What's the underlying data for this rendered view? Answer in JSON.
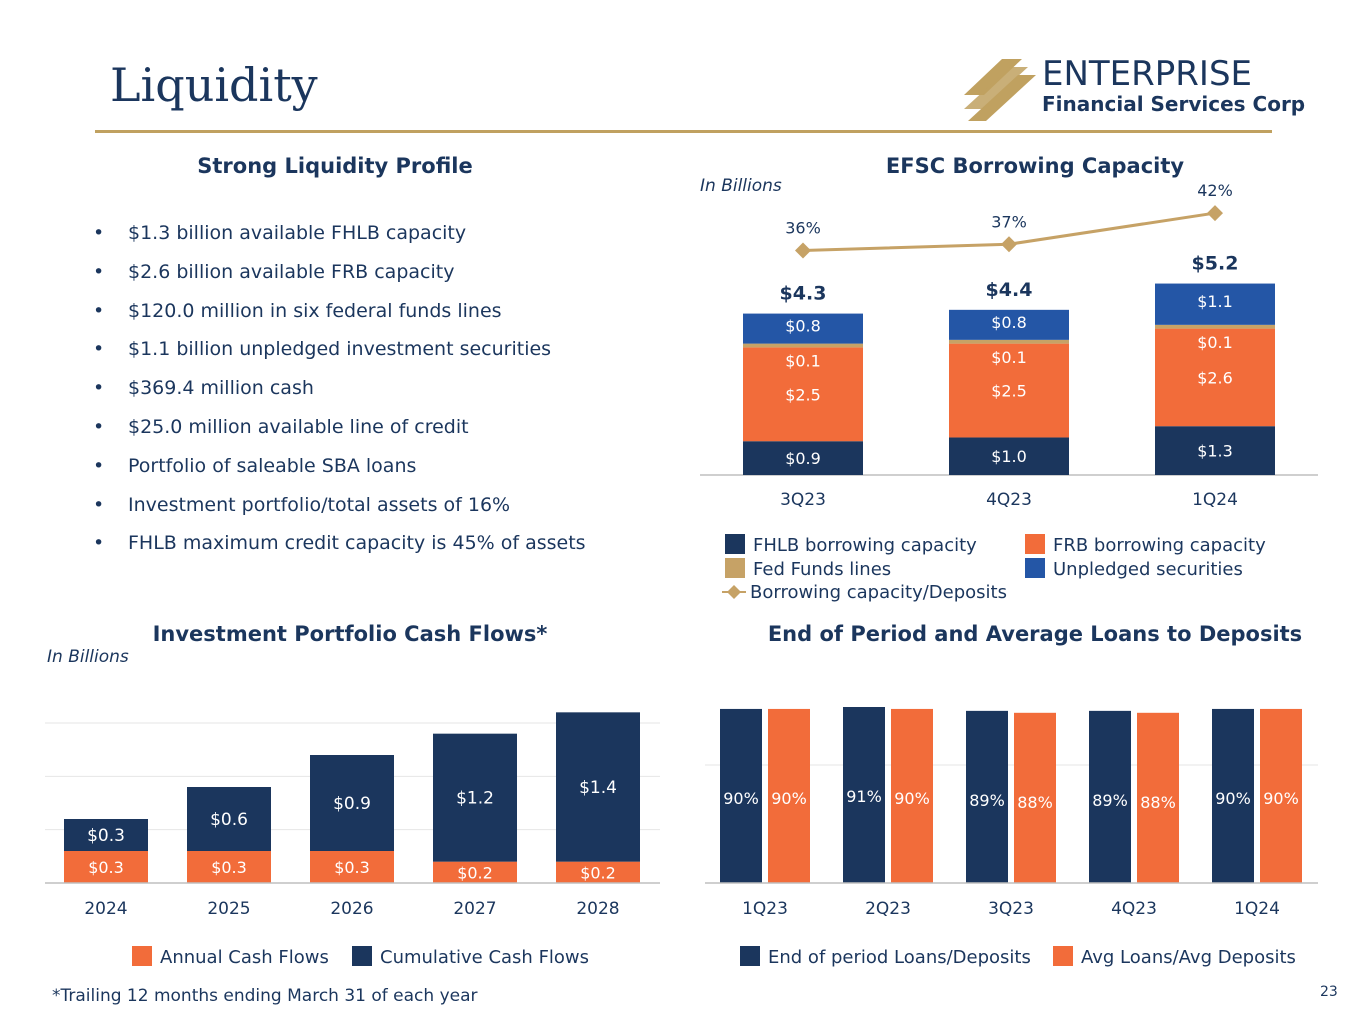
{
  "page": {
    "title": "Liquidity",
    "page_number": "23",
    "footnote": "*Trailing 12 months ending March 31 of each year"
  },
  "logo": {
    "name": "ENTERPRISE",
    "subtitle": "Financial Services Corp"
  },
  "colors": {
    "navy": "#1b365d",
    "orange": "#f26c3a",
    "gold": "#c0a160",
    "blue": "#2456a6",
    "tan": "#c6a266"
  },
  "liquidity_profile": {
    "title": "Strong Liquidity Profile",
    "bullet_symbol": "•",
    "items": [
      "$1.3 billion available FHLB capacity",
      "$2.6 billion available FRB capacity",
      "$120.0 million in six federal funds lines",
      "$1.1 billion unpledged investment securities",
      "$369.4 million cash",
      "$25.0 million available line of credit",
      "Portfolio of saleable SBA loans",
      "Investment portfolio/total assets of 16%",
      "FHLB maximum credit capacity is 45% of assets"
    ]
  },
  "chart_data": [
    {
      "id": "borrowing",
      "type": "bar",
      "stacked": true,
      "title": "EFSC Borrowing Capacity",
      "units": "In Billions",
      "categories": [
        "3Q23",
        "4Q23",
        "1Q24"
      ],
      "series": [
        {
          "name": "FHLB borrowing capacity",
          "color": "#1b365d",
          "values": [
            0.9,
            1.0,
            1.3
          ],
          "labels": [
            "$0.9",
            "$1.0",
            "$1.3"
          ]
        },
        {
          "name": "FRB borrowing capacity",
          "color": "#f26c3a",
          "values": [
            2.5,
            2.5,
            2.6
          ],
          "labels": [
            "$2.5",
            "$2.5",
            "$2.6"
          ]
        },
        {
          "name": "Fed Funds lines",
          "color": "#c6a266",
          "values": [
            0.1,
            0.1,
            0.1
          ],
          "labels": [
            "$0.1",
            "$0.1",
            "$0.1"
          ]
        },
        {
          "name": "Unpledged securities",
          "color": "#2456a6",
          "values": [
            0.8,
            0.8,
            1.1
          ],
          "labels": [
            "$0.8",
            "$0.8",
            "$1.1"
          ]
        }
      ],
      "totals": [
        "$4.3",
        "$4.4",
        "$5.2"
      ],
      "total_values": [
        4.3,
        4.4,
        5.2
      ],
      "line_series": {
        "name": "Borrowing capacity/Deposits",
        "color": "#c6a266",
        "values": [
          36,
          37,
          42
        ],
        "labels": [
          "36%",
          "37%",
          "42%"
        ]
      },
      "ylim": [
        0,
        6.5
      ],
      "line_ylim": [
        0,
        45.7
      ]
    },
    {
      "id": "cashflows",
      "type": "bar",
      "stacked": true,
      "title": "Investment Portfolio Cash Flows*",
      "units": "In Billions",
      "categories": [
        "2024",
        "2025",
        "2026",
        "2027",
        "2028"
      ],
      "series": [
        {
          "name": "Annual Cash Flows",
          "color": "#f26c3a",
          "values": [
            0.3,
            0.3,
            0.3,
            0.2,
            0.2
          ],
          "labels": [
            "$0.3",
            "$0.3",
            "$0.3",
            "$0.2",
            "$0.2"
          ]
        },
        {
          "name": "Cumulative Cash Flows",
          "color": "#1b365d",
          "values": [
            0.3,
            0.6,
            0.9,
            1.2,
            1.4
          ],
          "labels": [
            "$0.3",
            "$0.6",
            "$0.9",
            "$1.2",
            "$1.4"
          ]
        }
      ],
      "ylim": [
        0,
        1.65
      ],
      "gridlines": true
    },
    {
      "id": "loans",
      "type": "bar",
      "stacked": false,
      "title": "End of Period and Average Loans to Deposits",
      "categories": [
        "1Q23",
        "2Q23",
        "3Q23",
        "4Q23",
        "1Q24"
      ],
      "series": [
        {
          "name": "End of period Loans/Deposits",
          "color": "#1b365d",
          "values": [
            90,
            91,
            89,
            89,
            90
          ],
          "labels": [
            "90%",
            "91%",
            "89%",
            "89%",
            "90%"
          ]
        },
        {
          "name": "Avg Loans/Avg Deposits",
          "color": "#f26c3a",
          "values": [
            90,
            90,
            88,
            88,
            90
          ],
          "labels": [
            "90%",
            "90%",
            "88%",
            "88%",
            "90%"
          ]
        }
      ],
      "ylim": [
        0,
        91
      ],
      "gridlines": true
    }
  ]
}
